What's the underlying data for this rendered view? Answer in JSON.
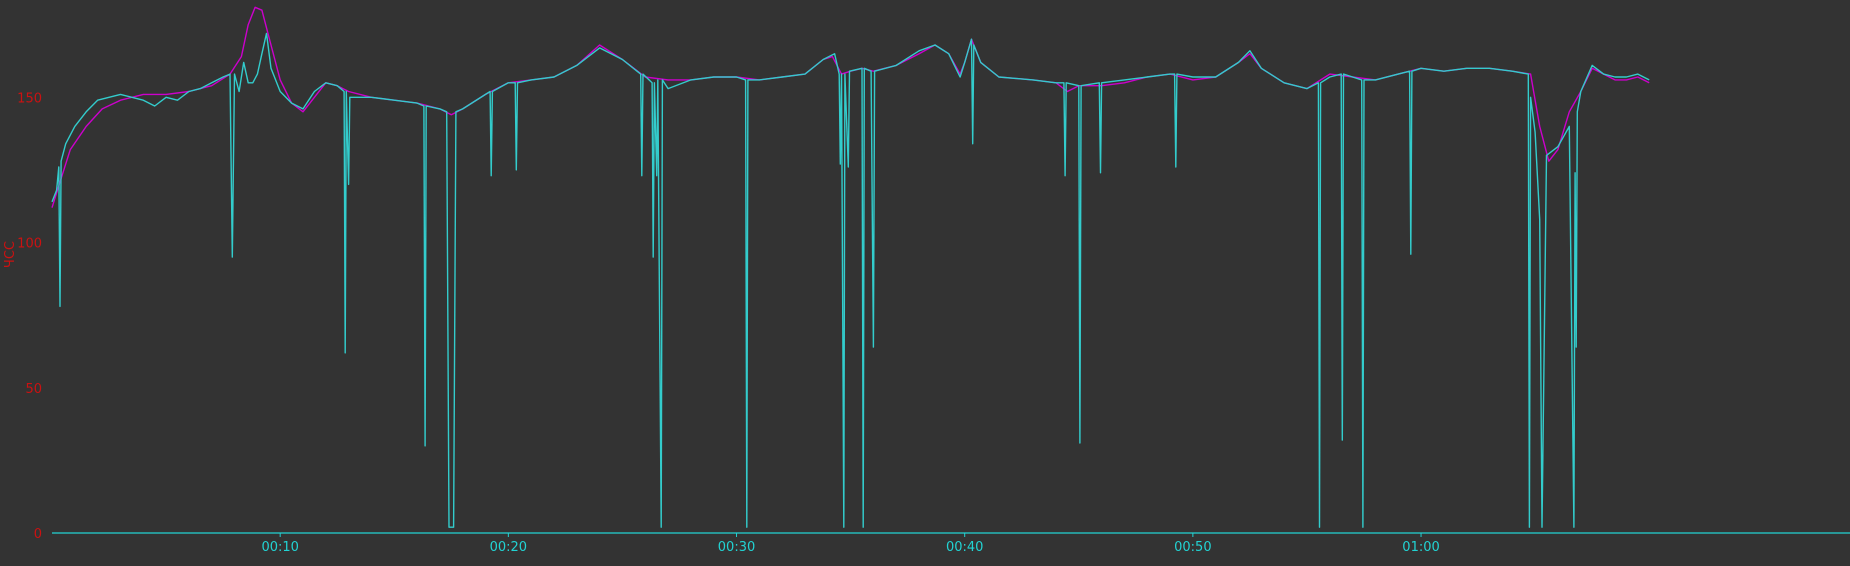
{
  "chart_data": {
    "type": "line",
    "title": "",
    "xlabel": "",
    "ylabel": "ЧСС",
    "xlim": [
      0.0,
      78.8
    ],
    "ylim": [
      0,
      183.5
    ],
    "grid": false,
    "x_ticks": [
      {
        "value": 10,
        "label": "00:10"
      },
      {
        "value": 20,
        "label": "00:20"
      },
      {
        "value": 30,
        "label": "00:30"
      },
      {
        "value": 40,
        "label": "00:40"
      },
      {
        "value": 50,
        "label": "00:50"
      },
      {
        "value": 60,
        "label": "01:00"
      }
    ],
    "y_ticks": [
      {
        "value": 0,
        "label": "0"
      },
      {
        "value": 50,
        "label": "50"
      },
      {
        "value": 100,
        "label": "100"
      },
      {
        "value": 150,
        "label": "150"
      }
    ],
    "colors": {
      "background": "#333333",
      "axis": "#22d3d3",
      "y_axis_labels": "#cc1111",
      "x_axis_labels": "#22d3d3",
      "series_smoothed": "#cc00cc",
      "series_raw": "#33cccc"
    },
    "series": [
      {
        "key": "smoothed",
        "color": "#cc00cc",
        "points": [
          [
            0.0,
            112
          ],
          [
            0.4,
            122
          ],
          [
            0.8,
            132
          ],
          [
            1.5,
            140
          ],
          [
            2.2,
            146
          ],
          [
            3.0,
            149
          ],
          [
            4.0,
            151
          ],
          [
            5.0,
            151
          ],
          [
            6.0,
            152
          ],
          [
            7.0,
            154
          ],
          [
            7.8,
            158
          ],
          [
            8.3,
            164
          ],
          [
            8.6,
            175
          ],
          [
            8.9,
            181
          ],
          [
            9.2,
            180
          ],
          [
            9.6,
            168
          ],
          [
            10.0,
            156
          ],
          [
            10.5,
            148
          ],
          [
            11.0,
            145
          ],
          [
            11.5,
            150
          ],
          [
            12.0,
            155
          ],
          [
            12.5,
            154
          ],
          [
            13.0,
            152
          ],
          [
            14.0,
            150
          ],
          [
            15.0,
            149
          ],
          [
            16.0,
            148
          ],
          [
            17.0,
            146
          ],
          [
            17.5,
            144
          ],
          [
            18.0,
            146
          ],
          [
            19.0,
            151
          ],
          [
            20.0,
            155
          ],
          [
            21.0,
            156
          ],
          [
            22.0,
            157
          ],
          [
            23.0,
            161
          ],
          [
            24.0,
            168
          ],
          [
            25.0,
            163
          ],
          [
            26.0,
            157
          ],
          [
            27.0,
            156
          ],
          [
            28.0,
            156
          ],
          [
            29.0,
            157
          ],
          [
            30.0,
            157
          ],
          [
            31.0,
            156
          ],
          [
            32.0,
            157
          ],
          [
            33.0,
            158
          ],
          [
            33.8,
            163
          ],
          [
            34.2,
            164
          ],
          [
            34.6,
            158
          ],
          [
            35.0,
            159
          ],
          [
            35.5,
            160
          ],
          [
            36.0,
            159
          ],
          [
            37.0,
            161
          ],
          [
            38.0,
            165
          ],
          [
            38.7,
            168
          ],
          [
            39.3,
            165
          ],
          [
            39.8,
            158
          ],
          [
            40.0,
            162
          ],
          [
            40.3,
            170
          ],
          [
            40.7,
            162
          ],
          [
            41.5,
            157
          ],
          [
            43.0,
            156
          ],
          [
            44.0,
            155
          ],
          [
            44.5,
            152
          ],
          [
            45.0,
            154
          ],
          [
            46.0,
            154
          ],
          [
            47.0,
            155
          ],
          [
            48.0,
            157
          ],
          [
            49.0,
            158
          ],
          [
            50.0,
            156
          ],
          [
            51.0,
            157
          ],
          [
            52.0,
            162
          ],
          [
            52.5,
            165
          ],
          [
            53.0,
            160
          ],
          [
            54.0,
            155
          ],
          [
            55.0,
            153
          ],
          [
            56.0,
            158
          ],
          [
            57.0,
            157
          ],
          [
            58.0,
            156
          ],
          [
            59.0,
            158
          ],
          [
            60.0,
            160
          ],
          [
            61.0,
            159
          ],
          [
            62.0,
            160
          ],
          [
            63.0,
            160
          ],
          [
            64.0,
            159
          ],
          [
            64.8,
            158
          ],
          [
            65.2,
            140
          ],
          [
            65.6,
            128
          ],
          [
            66.0,
            132
          ],
          [
            66.5,
            145
          ],
          [
            67.0,
            152
          ],
          [
            67.5,
            160
          ],
          [
            68.0,
            158
          ],
          [
            68.5,
            156
          ],
          [
            69.0,
            156
          ],
          [
            69.5,
            157
          ],
          [
            70.0,
            155
          ]
        ]
      },
      {
        "key": "raw",
        "color": "#33cccc",
        "points": [
          [
            0.0,
            114
          ],
          [
            0.2,
            118
          ],
          [
            0.3,
            126
          ],
          [
            0.35,
            78
          ],
          [
            0.4,
            128
          ],
          [
            0.6,
            134
          ],
          [
            1.0,
            140
          ],
          [
            1.5,
            145
          ],
          [
            2.0,
            149
          ],
          [
            2.5,
            150
          ],
          [
            3.0,
            151
          ],
          [
            3.5,
            150
          ],
          [
            4.0,
            149
          ],
          [
            4.5,
            147
          ],
          [
            5.0,
            150
          ],
          [
            5.5,
            149
          ],
          [
            6.0,
            152
          ],
          [
            6.5,
            153
          ],
          [
            7.0,
            155
          ],
          [
            7.5,
            157
          ],
          [
            7.8,
            158
          ],
          [
            7.9,
            95
          ],
          [
            8.0,
            158
          ],
          [
            8.2,
            152
          ],
          [
            8.4,
            162
          ],
          [
            8.6,
            155
          ],
          [
            8.8,
            155
          ],
          [
            9.0,
            158
          ],
          [
            9.2,
            165
          ],
          [
            9.4,
            172
          ],
          [
            9.6,
            160
          ],
          [
            10.0,
            152
          ],
          [
            10.5,
            148
          ],
          [
            11.0,
            146
          ],
          [
            11.5,
            152
          ],
          [
            12.0,
            155
          ],
          [
            12.5,
            154
          ],
          [
            12.8,
            152
          ],
          [
            12.85,
            62
          ],
          [
            12.9,
            152
          ],
          [
            13.0,
            120
          ],
          [
            13.05,
            150
          ],
          [
            14.0,
            150
          ],
          [
            15.0,
            149
          ],
          [
            16.0,
            148
          ],
          [
            16.3,
            147
          ],
          [
            16.35,
            30
          ],
          [
            16.4,
            147
          ],
          [
            17.0,
            146
          ],
          [
            17.3,
            145
          ],
          [
            17.4,
            2
          ],
          [
            17.6,
            2
          ],
          [
            17.7,
            145
          ],
          [
            18.0,
            146
          ],
          [
            19.0,
            151
          ],
          [
            19.2,
            152
          ],
          [
            19.25,
            123
          ],
          [
            19.3,
            152
          ],
          [
            20.0,
            155
          ],
          [
            20.3,
            155
          ],
          [
            20.35,
            125
          ],
          [
            20.4,
            155
          ],
          [
            21.0,
            156
          ],
          [
            22.0,
            157
          ],
          [
            23.0,
            161
          ],
          [
            24.0,
            167
          ],
          [
            25.0,
            163
          ],
          [
            25.8,
            158
          ],
          [
            25.85,
            123
          ],
          [
            25.9,
            158
          ],
          [
            26.3,
            155
          ],
          [
            26.35,
            95
          ],
          [
            26.4,
            155
          ],
          [
            26.5,
            123
          ],
          [
            26.55,
            156
          ],
          [
            26.7,
            2
          ],
          [
            26.75,
            156
          ],
          [
            27.0,
            153
          ],
          [
            28.0,
            156
          ],
          [
            29.0,
            157
          ],
          [
            30.0,
            157
          ],
          [
            30.4,
            156
          ],
          [
            30.45,
            2
          ],
          [
            30.5,
            156
          ],
          [
            31.0,
            156
          ],
          [
            32.0,
            157
          ],
          [
            33.0,
            158
          ],
          [
            33.8,
            163
          ],
          [
            34.3,
            165
          ],
          [
            34.5,
            158
          ],
          [
            34.55,
            127
          ],
          [
            34.6,
            158
          ],
          [
            34.7,
            2
          ],
          [
            34.75,
            158
          ],
          [
            34.9,
            126
          ],
          [
            34.95,
            159
          ],
          [
            35.5,
            160
          ],
          [
            35.55,
            2
          ],
          [
            35.6,
            160
          ],
          [
            35.9,
            159
          ],
          [
            36.0,
            64
          ],
          [
            36.05,
            159
          ],
          [
            37.0,
            161
          ],
          [
            38.0,
            166
          ],
          [
            38.7,
            168
          ],
          [
            39.3,
            165
          ],
          [
            39.8,
            157
          ],
          [
            40.0,
            162
          ],
          [
            40.3,
            170
          ],
          [
            40.35,
            134
          ],
          [
            40.4,
            168
          ],
          [
            40.7,
            162
          ],
          [
            41.5,
            157
          ],
          [
            43.0,
            156
          ],
          [
            44.0,
            155
          ],
          [
            44.35,
            155
          ],
          [
            44.4,
            123
          ],
          [
            44.45,
            155
          ],
          [
            45.0,
            154
          ],
          [
            45.05,
            31
          ],
          [
            45.1,
            154
          ],
          [
            45.9,
            155
          ],
          [
            45.95,
            124
          ],
          [
            46.0,
            155
          ],
          [
            47.0,
            156
          ],
          [
            48.0,
            157
          ],
          [
            49.0,
            158
          ],
          [
            49.2,
            158
          ],
          [
            49.25,
            126
          ],
          [
            49.3,
            158
          ],
          [
            50.0,
            157
          ],
          [
            51.0,
            157
          ],
          [
            52.0,
            162
          ],
          [
            52.5,
            166
          ],
          [
            53.0,
            160
          ],
          [
            54.0,
            155
          ],
          [
            55.0,
            153
          ],
          [
            55.5,
            155
          ],
          [
            55.55,
            2
          ],
          [
            55.6,
            155
          ],
          [
            56.0,
            157
          ],
          [
            56.5,
            158
          ],
          [
            56.55,
            32
          ],
          [
            56.6,
            158
          ],
          [
            57.0,
            157
          ],
          [
            57.4,
            156
          ],
          [
            57.45,
            2
          ],
          [
            57.5,
            156
          ],
          [
            58.0,
            156
          ],
          [
            59.0,
            158
          ],
          [
            59.5,
            159
          ],
          [
            59.55,
            96
          ],
          [
            59.6,
            159
          ],
          [
            60.0,
            160
          ],
          [
            61.0,
            159
          ],
          [
            62.0,
            160
          ],
          [
            63.0,
            160
          ],
          [
            64.0,
            159
          ],
          [
            64.7,
            158
          ],
          [
            64.75,
            2
          ],
          [
            64.8,
            150
          ],
          [
            65.0,
            138
          ],
          [
            65.2,
            108
          ],
          [
            65.3,
            2
          ],
          [
            65.5,
            130
          ],
          [
            66.0,
            133
          ],
          [
            66.5,
            140
          ],
          [
            66.7,
            2
          ],
          [
            66.75,
            124
          ],
          [
            66.8,
            64
          ],
          [
            66.85,
            145
          ],
          [
            67.0,
            152
          ],
          [
            67.5,
            161
          ],
          [
            68.0,
            158
          ],
          [
            68.5,
            157
          ],
          [
            69.0,
            157
          ],
          [
            69.5,
            158
          ],
          [
            70.0,
            156
          ]
        ]
      }
    ]
  }
}
